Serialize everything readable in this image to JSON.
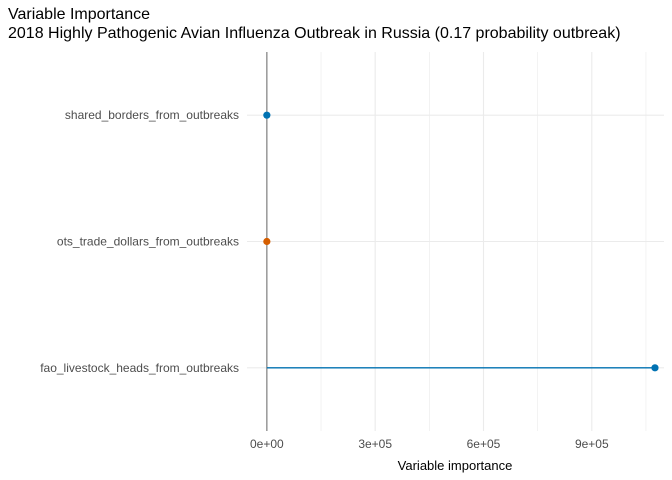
{
  "chart_data": {
    "type": "lollipop",
    "title": "Variable Importance",
    "subtitle": "2018 Highly Pathogenic Avian Influenza Outbreak in Russia (0.17 probability outbreak)",
    "xlabel": "Variable importance",
    "ylabel": "",
    "xlim": [
      -55000,
      1100000
    ],
    "x_ticks": [
      0,
      300000,
      600000,
      900000
    ],
    "x_tick_labels": [
      "0e+00",
      "3e+05",
      "6e+05",
      "9e+05"
    ],
    "grid": true,
    "legend": "none",
    "categories": [
      "shared_borders_from_outbreaks",
      "ots_trade_dollars_from_outbreaks",
      "fao_livestock_heads_from_outbreaks"
    ],
    "values": [
      0,
      0,
      1075000
    ],
    "colors": [
      "#0072B2",
      "#D55E00",
      "#0072B2"
    ],
    "reference_line_color": "#808080",
    "grid_color": "#ebebeb"
  }
}
